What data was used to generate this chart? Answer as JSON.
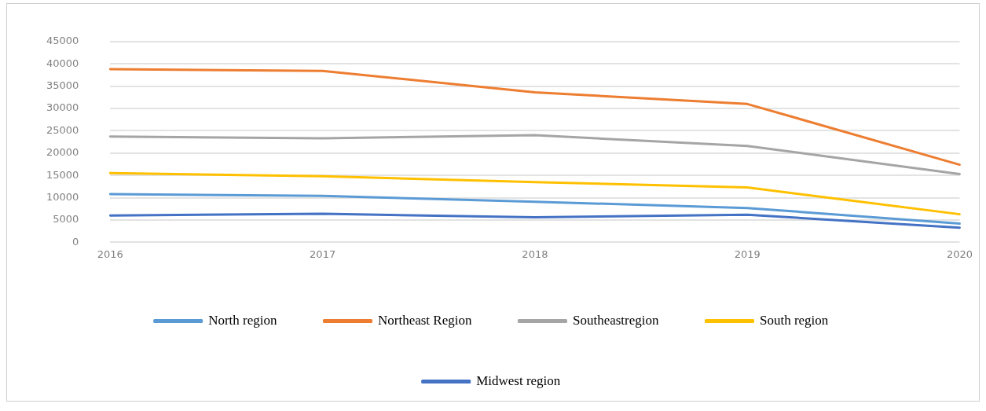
{
  "chart_data": {
    "type": "line",
    "categories": [
      "2016",
      "2017",
      "2018",
      "2019",
      "2020"
    ],
    "series": [
      {
        "name": "North region",
        "color": "#5b9bd5",
        "values": [
          10800,
          10400,
          9100,
          7700,
          4200
        ]
      },
      {
        "name": "Northeast Region",
        "color": "#ed7d31",
        "values": [
          38800,
          38400,
          33600,
          31000,
          17400
        ]
      },
      {
        "name": "Southeastregion",
        "color": "#a5a5a5",
        "values": [
          23700,
          23300,
          24000,
          21600,
          15300
        ]
      },
      {
        "name": "South region",
        "color": "#ffc000",
        "values": [
          15500,
          14800,
          13500,
          12300,
          6300
        ]
      },
      {
        "name": "Midwest region",
        "color": "#4472c4",
        "values": [
          6000,
          6400,
          5600,
          6200,
          3300
        ]
      }
    ],
    "ylim": [
      0,
      45000
    ],
    "yticks": [
      0,
      5000,
      10000,
      15000,
      20000,
      25000,
      30000,
      35000,
      40000,
      45000
    ],
    "grid": "y",
    "legend": "bottom",
    "marker": "none",
    "line_style": "solid"
  }
}
